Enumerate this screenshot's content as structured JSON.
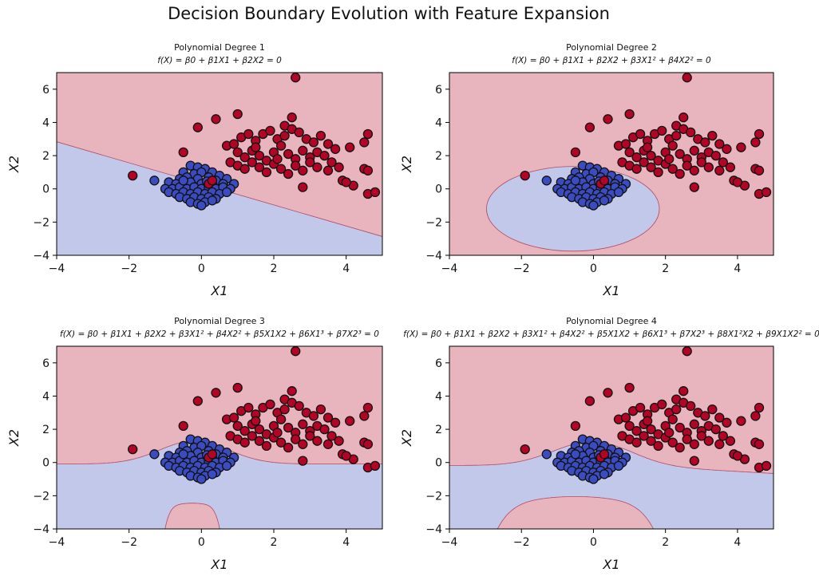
{
  "figure": {
    "title": "Decision Boundary Evolution with Feature Expansion"
  },
  "chart_data": [
    {
      "type": "scatter",
      "title": "Polynomial Degree 1",
      "subtitle": "f(X) = β0 + β1X1 + β2X2 = 0",
      "xlabel": "X1",
      "ylabel": "X2",
      "xlim": [
        -4,
        5
      ],
      "ylim": [
        -4,
        7
      ],
      "xticks": [
        -4,
        -2,
        0,
        2,
        4
      ],
      "yticks": [
        -4,
        -2,
        0,
        2,
        4,
        6
      ],
      "grid": false,
      "region_type": "linear",
      "colors": {
        "class0": "#3b4cc0",
        "class1": "#b40426",
        "region0": "#c2c8ea",
        "region1": "#e8b4bd"
      }
    },
    {
      "type": "scatter",
      "title": "Polynomial Degree 2",
      "subtitle": "f(X) = β0 + β1X1 + β2X2 + β3X1² + β4X2² = 0",
      "xlabel": "X1",
      "ylabel": "X2",
      "xlim": [
        -4,
        5
      ],
      "ylim": [
        -4,
        7
      ],
      "xticks": [
        -4,
        -2,
        0,
        2,
        4
      ],
      "yticks": [
        -4,
        -2,
        0,
        2,
        4,
        6
      ],
      "grid": false,
      "region_type": "ellipse",
      "colors": {
        "class0": "#3b4cc0",
        "class1": "#b40426",
        "region0": "#c2c8ea",
        "region1": "#e8b4bd"
      }
    },
    {
      "type": "scatter",
      "title": "Polynomial Degree 3",
      "subtitle": "f(X) = β0 + β1X1 + β2X2 + β3X1² + β4X2² + β5X1X2 + β6X1³ + β7X2³ = 0",
      "xlabel": "X1",
      "ylabel": "X2",
      "xlim": [
        -4,
        5
      ],
      "ylim": [
        -4,
        7
      ],
      "xticks": [
        -4,
        -2,
        0,
        2,
        4
      ],
      "yticks": [
        -4,
        -2,
        0,
        2,
        4,
        6
      ],
      "grid": false,
      "region_type": "cubic",
      "colors": {
        "class0": "#3b4cc0",
        "class1": "#b40426",
        "region0": "#c2c8ea",
        "region1": "#e8b4bd"
      }
    },
    {
      "type": "scatter",
      "title": "Polynomial Degree 4",
      "subtitle": "f(X) = β0 + β1X1 + β2X2 + β3X1² + β4X2² + β5X1X2 + β6X1³ + β7X2³ + β8X1²X2 + β9X1X2² = 0",
      "xlabel": "X1",
      "ylabel": "X2",
      "xlim": [
        -4,
        5
      ],
      "ylim": [
        -4,
        7
      ],
      "xticks": [
        -4,
        -2,
        0,
        2,
        4
      ],
      "yticks": [
        -4,
        -2,
        0,
        2,
        4,
        6
      ],
      "grid": false,
      "region_type": "quartic",
      "colors": {
        "class0": "#3b4cc0",
        "class1": "#b40426",
        "region0": "#c2c8ea",
        "region1": "#e8b4bd"
      }
    }
  ],
  "points": {
    "class0": [
      [
        -0.3,
        1.4
      ],
      [
        -0.1,
        1.3
      ],
      [
        0.1,
        1.2
      ],
      [
        0.3,
        1.0
      ],
      [
        -0.5,
        1.0
      ],
      [
        -0.2,
        0.9
      ],
      [
        0.0,
        1.0
      ],
      [
        0.5,
        0.8
      ],
      [
        0.7,
        0.6
      ],
      [
        -0.6,
        0.6
      ],
      [
        -0.4,
        0.7
      ],
      [
        -0.1,
        0.6
      ],
      [
        0.2,
        0.7
      ],
      [
        0.4,
        0.5
      ],
      [
        -0.9,
        0.4
      ],
      [
        -0.7,
        0.3
      ],
      [
        -0.5,
        0.3
      ],
      [
        -0.3,
        0.4
      ],
      [
        0.0,
        0.3
      ],
      [
        0.3,
        0.3
      ],
      [
        0.6,
        0.3
      ],
      [
        0.9,
        0.3
      ],
      [
        -1.0,
        0.0
      ],
      [
        -0.8,
        0.0
      ],
      [
        -0.6,
        0.1
      ],
      [
        -0.4,
        0.0
      ],
      [
        -0.2,
        0.1
      ],
      [
        0.0,
        0.0
      ],
      [
        0.2,
        0.1
      ],
      [
        0.4,
        0.0
      ],
      [
        0.6,
        0.1
      ],
      [
        0.8,
        0.0
      ],
      [
        -0.9,
        -0.2
      ],
      [
        -0.7,
        -0.3
      ],
      [
        -0.5,
        -0.2
      ],
      [
        -0.3,
        -0.3
      ],
      [
        -0.1,
        -0.2
      ],
      [
        0.1,
        -0.3
      ],
      [
        0.3,
        -0.2
      ],
      [
        0.5,
        -0.3
      ],
      [
        0.7,
        -0.2
      ],
      [
        -0.6,
        -0.5
      ],
      [
        -0.4,
        -0.6
      ],
      [
        -0.2,
        -0.5
      ],
      [
        0.0,
        -0.6
      ],
      [
        0.2,
        -0.5
      ],
      [
        0.4,
        -0.6
      ],
      [
        -0.3,
        -0.8
      ],
      [
        -0.1,
        -0.9
      ],
      [
        0.1,
        -0.8
      ],
      [
        0.3,
        -0.7
      ],
      [
        0.0,
        -1.0
      ],
      [
        -1.3,
        0.5
      ],
      [
        -0.5,
        0.5
      ],
      [
        0.15,
        0.45
      ]
    ],
    "class1": [
      [
        2.6,
        6.7
      ],
      [
        1.0,
        4.5
      ],
      [
        0.4,
        4.2
      ],
      [
        -0.1,
        3.7
      ],
      [
        2.5,
        4.3
      ],
      [
        2.3,
        3.8
      ],
      [
        4.6,
        3.3
      ],
      [
        -0.5,
        2.2
      ],
      [
        0.7,
        2.6
      ],
      [
        0.9,
        2.7
      ],
      [
        1.1,
        3.1
      ],
      [
        1.3,
        3.3
      ],
      [
        1.5,
        2.9
      ],
      [
        1.7,
        3.3
      ],
      [
        1.9,
        3.5
      ],
      [
        2.1,
        3.0
      ],
      [
        2.3,
        3.2
      ],
      [
        2.5,
        3.6
      ],
      [
        2.7,
        3.4
      ],
      [
        2.9,
        3.0
      ],
      [
        3.1,
        2.8
      ],
      [
        3.3,
        3.2
      ],
      [
        3.5,
        2.7
      ],
      [
        3.7,
        2.4
      ],
      [
        1.0,
        2.2
      ],
      [
        1.2,
        1.9
      ],
      [
        1.4,
        2.3
      ],
      [
        1.6,
        2.0
      ],
      [
        1.8,
        1.7
      ],
      [
        2.0,
        2.2
      ],
      [
        2.2,
        2.6
      ],
      [
        2.4,
        2.1
      ],
      [
        2.6,
        1.8
      ],
      [
        2.8,
        2.3
      ],
      [
        3.0,
        1.9
      ],
      [
        3.2,
        2.2
      ],
      [
        3.4,
        2.0
      ],
      [
        3.6,
        1.6
      ],
      [
        3.8,
        1.3
      ],
      [
        0.8,
        1.6
      ],
      [
        1.0,
        1.4
      ],
      [
        1.2,
        1.2
      ],
      [
        1.4,
        1.6
      ],
      [
        1.6,
        1.3
      ],
      [
        1.8,
        1.0
      ],
      [
        2.0,
        1.5
      ],
      [
        2.2,
        1.2
      ],
      [
        2.4,
        0.9
      ],
      [
        2.6,
        1.4
      ],
      [
        2.8,
        1.1
      ],
      [
        3.0,
        1.6
      ],
      [
        3.2,
        1.3
      ],
      [
        3.5,
        1.1
      ],
      [
        3.9,
        0.5
      ],
      [
        4.2,
        0.2
      ],
      [
        4.0,
        0.4
      ],
      [
        4.5,
        1.2
      ],
      [
        4.6,
        1.1
      ],
      [
        4.6,
        -0.3
      ],
      [
        4.8,
        -0.2
      ],
      [
        4.5,
        2.8
      ],
      [
        4.1,
        2.5
      ],
      [
        2.8,
        0.1
      ],
      [
        0.2,
        0.3
      ],
      [
        0.3,
        0.5
      ],
      [
        -1.9,
        0.8
      ],
      [
        1.5,
        2.5
      ],
      [
        2.1,
        1.8
      ]
    ]
  }
}
